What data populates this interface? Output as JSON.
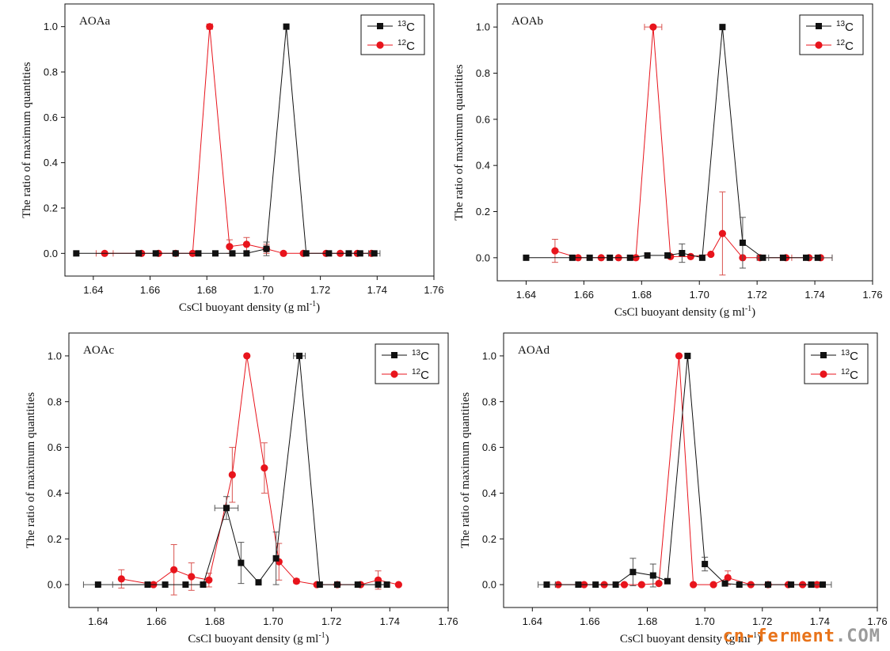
{
  "colors": {
    "c13": "#111111",
    "c12": "#e8141c",
    "errbar_13": "#555555",
    "errbar_12": "#d9534f"
  },
  "chart_data": [
    {
      "type": "line",
      "title": "AOAa",
      "xlabel": "CsCl buoyant density (g ml",
      "xlabel_sup": "-1",
      "xlabel_close": ")",
      "ylabel": "The ratio of maximum quantities",
      "xlim": [
        1.63,
        1.76
      ],
      "ylim": [
        -0.1,
        1.1
      ],
      "xticks": [
        1.64,
        1.66,
        1.68,
        1.7,
        1.72,
        1.74,
        1.76
      ],
      "xtick_labels": [
        "1.64",
        "1.66",
        "1.68",
        "1.70",
        "1.72",
        "1.74",
        "1.76"
      ],
      "yticks": [
        0.0,
        0.2,
        0.4,
        0.6,
        0.8,
        1.0
      ],
      "ytick_labels": [
        "0.0",
        "0.2",
        "0.4",
        "0.6",
        "0.8",
        "1.0"
      ],
      "legend": "top-right",
      "series": [
        {
          "name": "13C",
          "mass": "13",
          "element": "C",
          "marker": "square",
          "x": [
            1.634,
            1.656,
            1.662,
            1.669,
            1.677,
            1.683,
            1.689,
            1.694,
            1.701,
            1.708,
            1.715,
            1.723,
            1.73,
            1.734,
            1.739
          ],
          "y": [
            0.0,
            0.0,
            0.0,
            0.0,
            0.0,
            0.0,
            0.0,
            0.0,
            0.02,
            1.0,
            0.0,
            0.0,
            0.0,
            0.0,
            0.0
          ],
          "yerr": [
            0,
            0,
            0,
            0,
            0,
            0,
            0,
            0,
            0.03,
            0,
            0,
            0,
            0,
            0,
            0
          ],
          "xerr": [
            0,
            0,
            0,
            0,
            0,
            0,
            0,
            0,
            0,
            0,
            0,
            0,
            0,
            0,
            0.002
          ]
        },
        {
          "name": "12C",
          "mass": "12",
          "element": "C",
          "marker": "circle",
          "x": [
            1.644,
            1.657,
            1.663,
            1.669,
            1.675,
            1.681,
            1.688,
            1.694,
            1.701,
            1.707,
            1.714,
            1.722,
            1.727,
            1.733,
            1.738
          ],
          "y": [
            0.0,
            0.0,
            0.0,
            0.0,
            0.0,
            1.0,
            0.03,
            0.04,
            0.02,
            0.0,
            0.0,
            0.0,
            0.0,
            0.0,
            0.0
          ],
          "yerr": [
            0,
            0,
            0,
            0,
            0,
            0,
            0.03,
            0.03,
            0.02,
            0,
            0,
            0,
            0,
            0,
            0
          ],
          "xerr": [
            0.003,
            0,
            0,
            0,
            0,
            0.001,
            0,
            0,
            0,
            0,
            0,
            0,
            0,
            0,
            0
          ]
        }
      ]
    },
    {
      "type": "line",
      "title": "AOAb",
      "xlabel": "CsCl buoyant density (g ml",
      "xlabel_sup": "-1",
      "xlabel_close": ")",
      "ylabel": "The ratio of maximum quantities",
      "xlim": [
        1.63,
        1.76
      ],
      "ylim": [
        -0.1,
        1.1
      ],
      "xticks": [
        1.64,
        1.66,
        1.68,
        1.7,
        1.72,
        1.74,
        1.76
      ],
      "xtick_labels": [
        "1.64",
        "1.66",
        "1.68",
        "1.70",
        "1.72",
        "1.74",
        "1.76"
      ],
      "yticks": [
        0.0,
        0.2,
        0.4,
        0.6,
        0.8,
        1.0
      ],
      "ytick_labels": [
        "0.0",
        "0.2",
        "0.4",
        "0.6",
        "0.8",
        "1.0"
      ],
      "legend": "top-right",
      "series": [
        {
          "name": "13C",
          "mass": "13",
          "element": "C",
          "marker": "square",
          "x": [
            1.64,
            1.656,
            1.662,
            1.669,
            1.676,
            1.682,
            1.689,
            1.694,
            1.701,
            1.708,
            1.715,
            1.722,
            1.729,
            1.737,
            1.741
          ],
          "y": [
            0.0,
            0.0,
            0.0,
            0.0,
            0.0,
            0.01,
            0.01,
            0.02,
            0.0,
            1.0,
            0.065,
            0.0,
            0.0,
            0.0,
            0.0
          ],
          "yerr": [
            0,
            0,
            0,
            0,
            0,
            0,
            0.01,
            0.04,
            0,
            0,
            0.11,
            0,
            0,
            0,
            0
          ],
          "xerr": [
            0,
            0,
            0,
            0,
            0,
            0,
            0,
            0,
            0,
            0,
            0,
            0.002,
            0,
            0,
            0.005
          ]
        },
        {
          "name": "12C",
          "mass": "12",
          "element": "C",
          "marker": "circle",
          "x": [
            1.65,
            1.658,
            1.666,
            1.672,
            1.678,
            1.684,
            1.69,
            1.697,
            1.704,
            1.708,
            1.715,
            1.721,
            1.73,
            1.738,
            1.742
          ],
          "y": [
            0.03,
            0.0,
            0.0,
            0.0,
            0.0,
            1.0,
            0.005,
            0.005,
            0.015,
            0.105,
            0.0,
            0.0,
            0.0,
            0.0,
            0.0
          ],
          "yerr": [
            0.05,
            0,
            0,
            0,
            0,
            0,
            0,
            0,
            0,
            0.18,
            0,
            0,
            0,
            0,
            0
          ],
          "xerr": [
            0,
            0,
            0,
            0,
            0,
            0.003,
            0,
            0,
            0,
            0,
            0,
            0,
            0.002,
            0,
            0.004
          ]
        }
      ]
    },
    {
      "type": "line",
      "title": "AOAc",
      "xlabel": "CsCl buoyant density (g ml",
      "xlabel_sup": "-1",
      "xlabel_close": ")",
      "ylabel": "The ratio of maximum quantities",
      "xlim": [
        1.63,
        1.76
      ],
      "ylim": [
        -0.1,
        1.1
      ],
      "xticks": [
        1.64,
        1.66,
        1.68,
        1.7,
        1.72,
        1.74,
        1.76
      ],
      "xtick_labels": [
        "1.64",
        "1.66",
        "1.68",
        "1.70",
        "1.72",
        "1.74",
        "1.76"
      ],
      "yticks": [
        0.0,
        0.2,
        0.4,
        0.6,
        0.8,
        1.0
      ],
      "ytick_labels": [
        "0.0",
        "0.2",
        "0.4",
        "0.6",
        "0.8",
        "1.0"
      ],
      "legend": "top-right",
      "series": [
        {
          "name": "13C",
          "mass": "13",
          "element": "C",
          "marker": "square",
          "x": [
            1.64,
            1.657,
            1.663,
            1.67,
            1.676,
            1.684,
            1.689,
            1.695,
            1.701,
            1.709,
            1.716,
            1.722,
            1.729,
            1.736,
            1.739
          ],
          "y": [
            0.0,
            0.0,
            0.0,
            0.0,
            0.0,
            0.335,
            0.095,
            0.01,
            0.115,
            1.0,
            0.0,
            0.0,
            0.0,
            0.0,
            0.0
          ],
          "yerr": [
            0,
            0,
            0,
            0,
            0,
            0.05,
            0.09,
            0.01,
            0.115,
            0,
            0,
            0,
            0,
            0,
            0
          ],
          "xerr": [
            0.005,
            0,
            0,
            0,
            0,
            0.004,
            0,
            0,
            0,
            0.002,
            0,
            0,
            0,
            0,
            0
          ]
        },
        {
          "name": "12C",
          "mass": "12",
          "element": "C",
          "marker": "circle",
          "x": [
            1.648,
            1.659,
            1.666,
            1.672,
            1.678,
            1.686,
            1.691,
            1.697,
            1.702,
            1.708,
            1.715,
            1.722,
            1.73,
            1.736,
            1.743
          ],
          "y": [
            0.025,
            0.0,
            0.065,
            0.035,
            0.02,
            0.48,
            1.0,
            0.51,
            0.1,
            0.015,
            0.0,
            0.0,
            0.0,
            0.02,
            0.0
          ],
          "yerr": [
            0.04,
            0,
            0.11,
            0.06,
            0.03,
            0.12,
            0,
            0.11,
            0.08,
            0.01,
            0,
            0,
            0,
            0.04,
            0
          ],
          "xerr": [
            0,
            0,
            0,
            0,
            0,
            0,
            0,
            0,
            0,
            0,
            0,
            0,
            0,
            0,
            0
          ]
        }
      ]
    },
    {
      "type": "line",
      "title": "AOAd",
      "xlabel": "CsCl buoyant density (g ml",
      "xlabel_sup": "-1",
      "xlabel_close": ")",
      "ylabel": "The ratio of maximum quantities",
      "xlim": [
        1.63,
        1.76
      ],
      "ylim": [
        -0.1,
        1.1
      ],
      "xticks": [
        1.64,
        1.66,
        1.68,
        1.7,
        1.72,
        1.74,
        1.76
      ],
      "xtick_labels": [
        "1.64",
        "1.66",
        "1.68",
        "1.70",
        "1.72",
        "1.74",
        "1.76"
      ],
      "yticks": [
        0.0,
        0.2,
        0.4,
        0.6,
        0.8,
        1.0
      ],
      "ytick_labels": [
        "0.0",
        "0.2",
        "0.4",
        "0.6",
        "0.8",
        "1.0"
      ],
      "legend": "top-right",
      "series": [
        {
          "name": "13C",
          "mass": "13",
          "element": "C",
          "marker": "square",
          "x": [
            1.645,
            1.656,
            1.662,
            1.669,
            1.675,
            1.682,
            1.687,
            1.694,
            1.7,
            1.707,
            1.712,
            1.722,
            1.73,
            1.737,
            1.741
          ],
          "y": [
            0.0,
            0.0,
            0.0,
            0.0,
            0.055,
            0.04,
            0.015,
            1.0,
            0.09,
            0.005,
            0.0,
            0.0,
            0.0,
            0.0,
            0.0
          ],
          "yerr": [
            0,
            0,
            0,
            0,
            0.06,
            0.05,
            0,
            0,
            0.03,
            0,
            0,
            0,
            0,
            0,
            0
          ],
          "xerr": [
            0.003,
            0,
            0,
            0,
            0,
            0,
            0,
            0,
            0,
            0,
            0,
            0,
            0,
            0,
            0.003
          ]
        },
        {
          "name": "12C",
          "mass": "12",
          "element": "C",
          "marker": "circle",
          "x": [
            1.649,
            1.658,
            1.665,
            1.672,
            1.678,
            1.684,
            1.691,
            1.696,
            1.703,
            1.708,
            1.716,
            1.722,
            1.729,
            1.734,
            1.739
          ],
          "y": [
            0.0,
            0.0,
            0.0,
            0.0,
            0.0,
            0.005,
            1.0,
            0.0,
            0.0,
            0.03,
            0.0,
            0.0,
            0.0,
            0.0,
            0.0
          ],
          "yerr": [
            0,
            0,
            0,
            0,
            0,
            0,
            0,
            0,
            0,
            0.03,
            0,
            0,
            0,
            0,
            0
          ],
          "xerr": [
            0,
            0,
            0,
            0,
            0,
            0,
            0,
            0,
            0,
            0,
            0,
            0,
            0,
            0,
            0
          ]
        }
      ]
    }
  ],
  "watermark": {
    "part1": "cn-ferment",
    "part2": ".COM"
  }
}
